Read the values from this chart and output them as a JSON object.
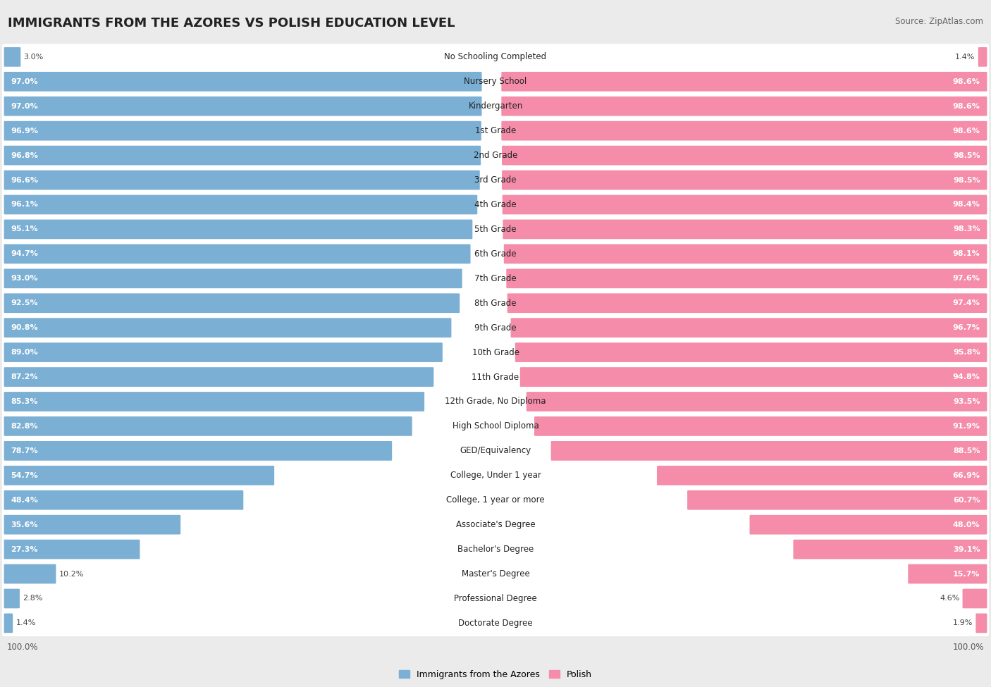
{
  "title": "IMMIGRANTS FROM THE AZORES VS POLISH EDUCATION LEVEL",
  "source": "Source: ZipAtlas.com",
  "categories": [
    "No Schooling Completed",
    "Nursery School",
    "Kindergarten",
    "1st Grade",
    "2nd Grade",
    "3rd Grade",
    "4th Grade",
    "5th Grade",
    "6th Grade",
    "7th Grade",
    "8th Grade",
    "9th Grade",
    "10th Grade",
    "11th Grade",
    "12th Grade, No Diploma",
    "High School Diploma",
    "GED/Equivalency",
    "College, Under 1 year",
    "College, 1 year or more",
    "Associate's Degree",
    "Bachelor's Degree",
    "Master's Degree",
    "Professional Degree",
    "Doctorate Degree"
  ],
  "azores": [
    3.0,
    97.0,
    97.0,
    96.9,
    96.8,
    96.6,
    96.1,
    95.1,
    94.7,
    93.0,
    92.5,
    90.8,
    89.0,
    87.2,
    85.3,
    82.8,
    78.7,
    54.7,
    48.4,
    35.6,
    27.3,
    10.2,
    2.8,
    1.4
  ],
  "polish": [
    1.4,
    98.6,
    98.6,
    98.6,
    98.5,
    98.5,
    98.4,
    98.3,
    98.1,
    97.6,
    97.4,
    96.7,
    95.8,
    94.8,
    93.5,
    91.9,
    88.5,
    66.9,
    60.7,
    48.0,
    39.1,
    15.7,
    4.6,
    1.9
  ],
  "azores_color": "#7bafd4",
  "polish_color": "#f48caa",
  "bg_color": "#ebebeb",
  "row_bg_color": "#ffffff",
  "title_fontsize": 13,
  "label_fontsize": 8.5,
  "value_fontsize": 8.0,
  "legend_label_azores": "Immigrants from the Azores",
  "legend_label_polish": "Polish"
}
